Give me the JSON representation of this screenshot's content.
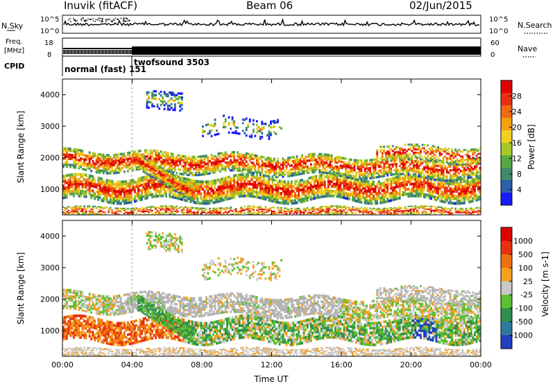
{
  "header": {
    "station": "Inuvik (fitACF)",
    "beam": "Beam 06",
    "date": "02/Jun/2015"
  },
  "nsky_panel": {
    "left_label": "N.Sky",
    "left_ticks": [
      "10^5",
      "10^0"
    ],
    "right_label": "N.Search",
    "right_ticks": [
      "10^5",
      "10^0"
    ]
  },
  "freq_panel": {
    "left_label_1": "Freq.",
    "left_label_2": "[MHz]",
    "left_ticks": [
      "18",
      "8"
    ],
    "right_label": "Nave",
    "right_ticks": [
      "60",
      "0"
    ]
  },
  "cpid_panel": {
    "label": "CPID",
    "mode_1": "normal (fast) 151",
    "mode_2": "twofsound 3503"
  },
  "chart_data": [
    {
      "type": "heatmap",
      "name": "Power",
      "ylabel": "Slant Range [km]",
      "xlabel": "",
      "x_ticks": [
        "00:00",
        "04:00",
        "08:00",
        "12:00",
        "16:00",
        "20:00",
        "00:00"
      ],
      "x_range_hours": [
        0,
        24
      ],
      "y_ticks": [
        1000,
        2000,
        3000,
        4000
      ],
      "ylim": [
        180,
        4500
      ],
      "colorbar": {
        "label": "Power [dB]",
        "ticks": [
          "4",
          "8",
          "12",
          "16",
          "20",
          "24",
          "28"
        ],
        "colors": [
          "#1a1aff",
          "#2c5fa8",
          "#3e8a6a",
          "#5aa844",
          "#a8c828",
          "#f2d020",
          "#f5a010",
          "#f06a10",
          "#e83010",
          "#e00000"
        ]
      }
    },
    {
      "type": "heatmap",
      "name": "Velocity",
      "ylabel": "Slant Range [km]",
      "xlabel": "Time UT",
      "x_ticks": [
        "00:00",
        "04:00",
        "08:00",
        "12:00",
        "16:00",
        "20:00",
        "00:00"
      ],
      "x_range_hours": [
        0,
        24
      ],
      "y_ticks": [
        1000,
        2000,
        3000,
        4000
      ],
      "ylim": [
        180,
        4500
      ],
      "colorbar": {
        "label": "Velocity [m s-1]",
        "ticks": [
          "1000",
          "500",
          "100",
          "25",
          "-25",
          "-100",
          "-500",
          "-1000"
        ],
        "colors": [
          "#2040c0",
          "#2e7a9a",
          "#2f8f4e",
          "#5cc030",
          "#c8c8c8",
          "#f4a020",
          "#f07010",
          "#e83010",
          "#e00000"
        ]
      }
    }
  ],
  "colors": {
    "gs_gray": "#b4b4b4",
    "axis": "#000000"
  }
}
